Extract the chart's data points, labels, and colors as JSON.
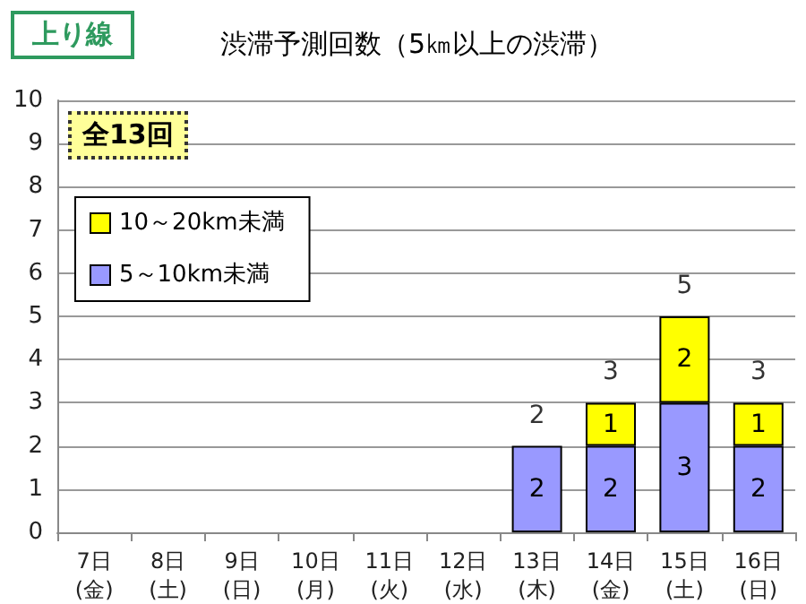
{
  "chart_data": {
    "type": "bar",
    "title": "渋滞予測回数（5㎞以上の渋滞）",
    "annotations": [
      "上り線",
      "全13回"
    ],
    "categories": [
      "7日\n(金)",
      "8日\n(土)",
      "9日\n(日)",
      "10日\n(月)",
      "11日\n(火)",
      "12日\n(水)",
      "13日\n(木)",
      "14日\n(金)",
      "15日\n(土)",
      "16日\n(日)"
    ],
    "stacked": true,
    "series": [
      {
        "name": "5～10km未満",
        "color": "#9999ff",
        "values": [
          0,
          0,
          0,
          0,
          0,
          0,
          2,
          2,
          3,
          2
        ],
        "value_labels": [
          null,
          null,
          null,
          null,
          null,
          null,
          "2",
          "2",
          "3",
          "2"
        ]
      },
      {
        "name": "10～20km未満",
        "color": "#ffff00",
        "values": [
          0,
          0,
          0,
          0,
          0,
          0,
          0,
          1,
          2,
          1
        ],
        "value_labels": [
          null,
          null,
          null,
          null,
          null,
          null,
          null,
          "1",
          "2",
          "1"
        ]
      }
    ],
    "totals": [
      null,
      null,
      null,
      null,
      null,
      null,
      "2",
      "3",
      "5",
      "3"
    ],
    "ylim": [
      0,
      10
    ],
    "yticks": [
      0,
      1,
      2,
      3,
      4,
      5,
      6,
      7,
      8,
      9,
      10
    ],
    "grid": "y",
    "legend": "top left"
  }
}
